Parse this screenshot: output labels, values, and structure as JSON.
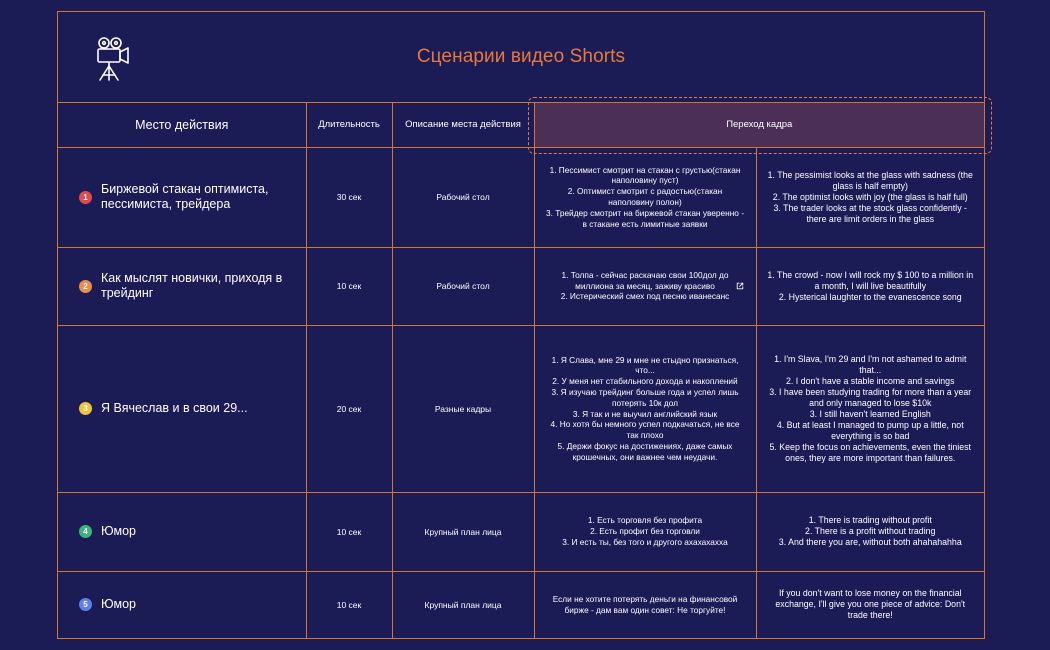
{
  "header": {
    "title": "Сценарии видео Shorts",
    "logo_icon": "film-camera-icon"
  },
  "columns": {
    "place": "Место действия",
    "duration": "Длительность",
    "location": "Описание места действия",
    "transition": "Переход кадра"
  },
  "colors": {
    "background": "#1b1b56",
    "border": "#d9742f",
    "title": "#e8793a",
    "header_highlight": "#4b2f56"
  },
  "rows": [
    {
      "number": "1",
      "place": "Биржевой стакан оптимиста, пессимиста, трейдера",
      "duration": "30 сек",
      "location": "Рабочий стол",
      "script_ru": "1. Пессимист смотрит на стакан с грустью(стакан наполовину пуст)\n2. Оптимист смотрит с радостью(стакан наполовину полон)\n3. Трейдер смотрит на биржевой стакан уверенно - в стакане есть лимитные заявки",
      "script_en": "1. The pessimist looks at the glass with sadness (the glass is half empty)\n2. The optimist looks with joy (the glass is half full)\n3. The trader looks at the stock glass confidently - there are limit orders in the glass"
    },
    {
      "number": "2",
      "place": "Как мыслят новички, приходя в трейдинг",
      "duration": "10 сек",
      "location": "Рабочий стол",
      "script_ru": "1. Толпа - сейчас раскачаю свои 100дол до миллиона за месяц, заживу красиво\n2. Истерический смех под песню иванесанс",
      "script_en": "1. The crowd - now I will rock my $ 100 to a million in a month, I will live beautifully\n2. Hysterical laughter to the evanescence song"
    },
    {
      "number": "3",
      "place": "Я Вячеслав и в свои 29...",
      "duration": "20 сек",
      "location": "Разные кадры",
      "script_ru": "1. Я Слава, мне 29 и мне не стыдно признаться, что...\n2. У меня нет стабильного дохода и накоплений\n3. Я изучаю трейдинг больше года и успел лишь потерять 10к дол\n3. Я так и не выучил английский язык\n4. Но хотя бы немного успел подкачаться, не все так плохо\n5. Держи фокус на достижениях, даже самых крошечных, они важнее чем неудачи.",
      "script_en": "1. I'm Slava, I'm 29 and I'm not ashamed to admit that...\n2. I don't have a stable income and savings\n3. I have been studying trading for more than a year and only managed to lose $10k\n3. I still haven't learned English\n4. But at least I managed to pump up a little, not everything is so bad\n5. Keep the focus on achievements, even the tiniest ones, they are more important than failures."
    },
    {
      "number": "4",
      "place": "Юмор",
      "duration": "10 сек",
      "location": "Крупный план лица",
      "script_ru": "1. Есть торговля без профита\n2. Есть профит без торговли\n3. И есть ты, без того и другого ахахахахха",
      "script_en": "1. There is trading without profit\n2. There is a profit without trading\n3. And there you are, without both ahahahahha"
    },
    {
      "number": "5",
      "place": "Юмор",
      "duration": "10 сек",
      "location": "Крупный план лица",
      "script_ru": "Если не хотите потерять деньги на финансовой бирже - дам вам один совет: Не торгуйте!",
      "script_en": "If you don't want to lose money on the financial exchange, I'll give you one piece of advice: Don't trade there!"
    }
  ]
}
